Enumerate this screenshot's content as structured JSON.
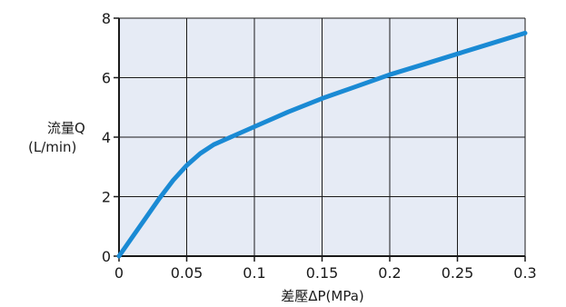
{
  "chart_data": {
    "type": "line",
    "xlabel": "差壓ΔP(MPa)",
    "ylabel_line1": "流量Q",
    "ylabel_line2": "(L/min)",
    "xlim": [
      0,
      0.3
    ],
    "ylim": [
      0,
      8
    ],
    "x_ticks": [
      "0",
      "0.05",
      "0.1",
      "0.15",
      "0.2",
      "0.25",
      "0.3"
    ],
    "y_ticks": [
      "0",
      "2",
      "4",
      "6",
      "8"
    ],
    "grid": true,
    "plot_background": "#e6ebf5",
    "line_color": "#1a8ad4",
    "series": [
      {
        "x": [
          0,
          0.01,
          0.02,
          0.03,
          0.04,
          0.05,
          0.06,
          0.07,
          0.08,
          0.1,
          0.125,
          0.15,
          0.175,
          0.2,
          0.225,
          0.25,
          0.275,
          0.3
        ],
        "y": [
          0,
          0.65,
          1.3,
          1.95,
          2.55,
          3.05,
          3.45,
          3.75,
          3.95,
          4.35,
          4.85,
          5.3,
          5.7,
          6.1,
          6.45,
          6.8,
          7.15,
          7.5
        ]
      }
    ]
  }
}
